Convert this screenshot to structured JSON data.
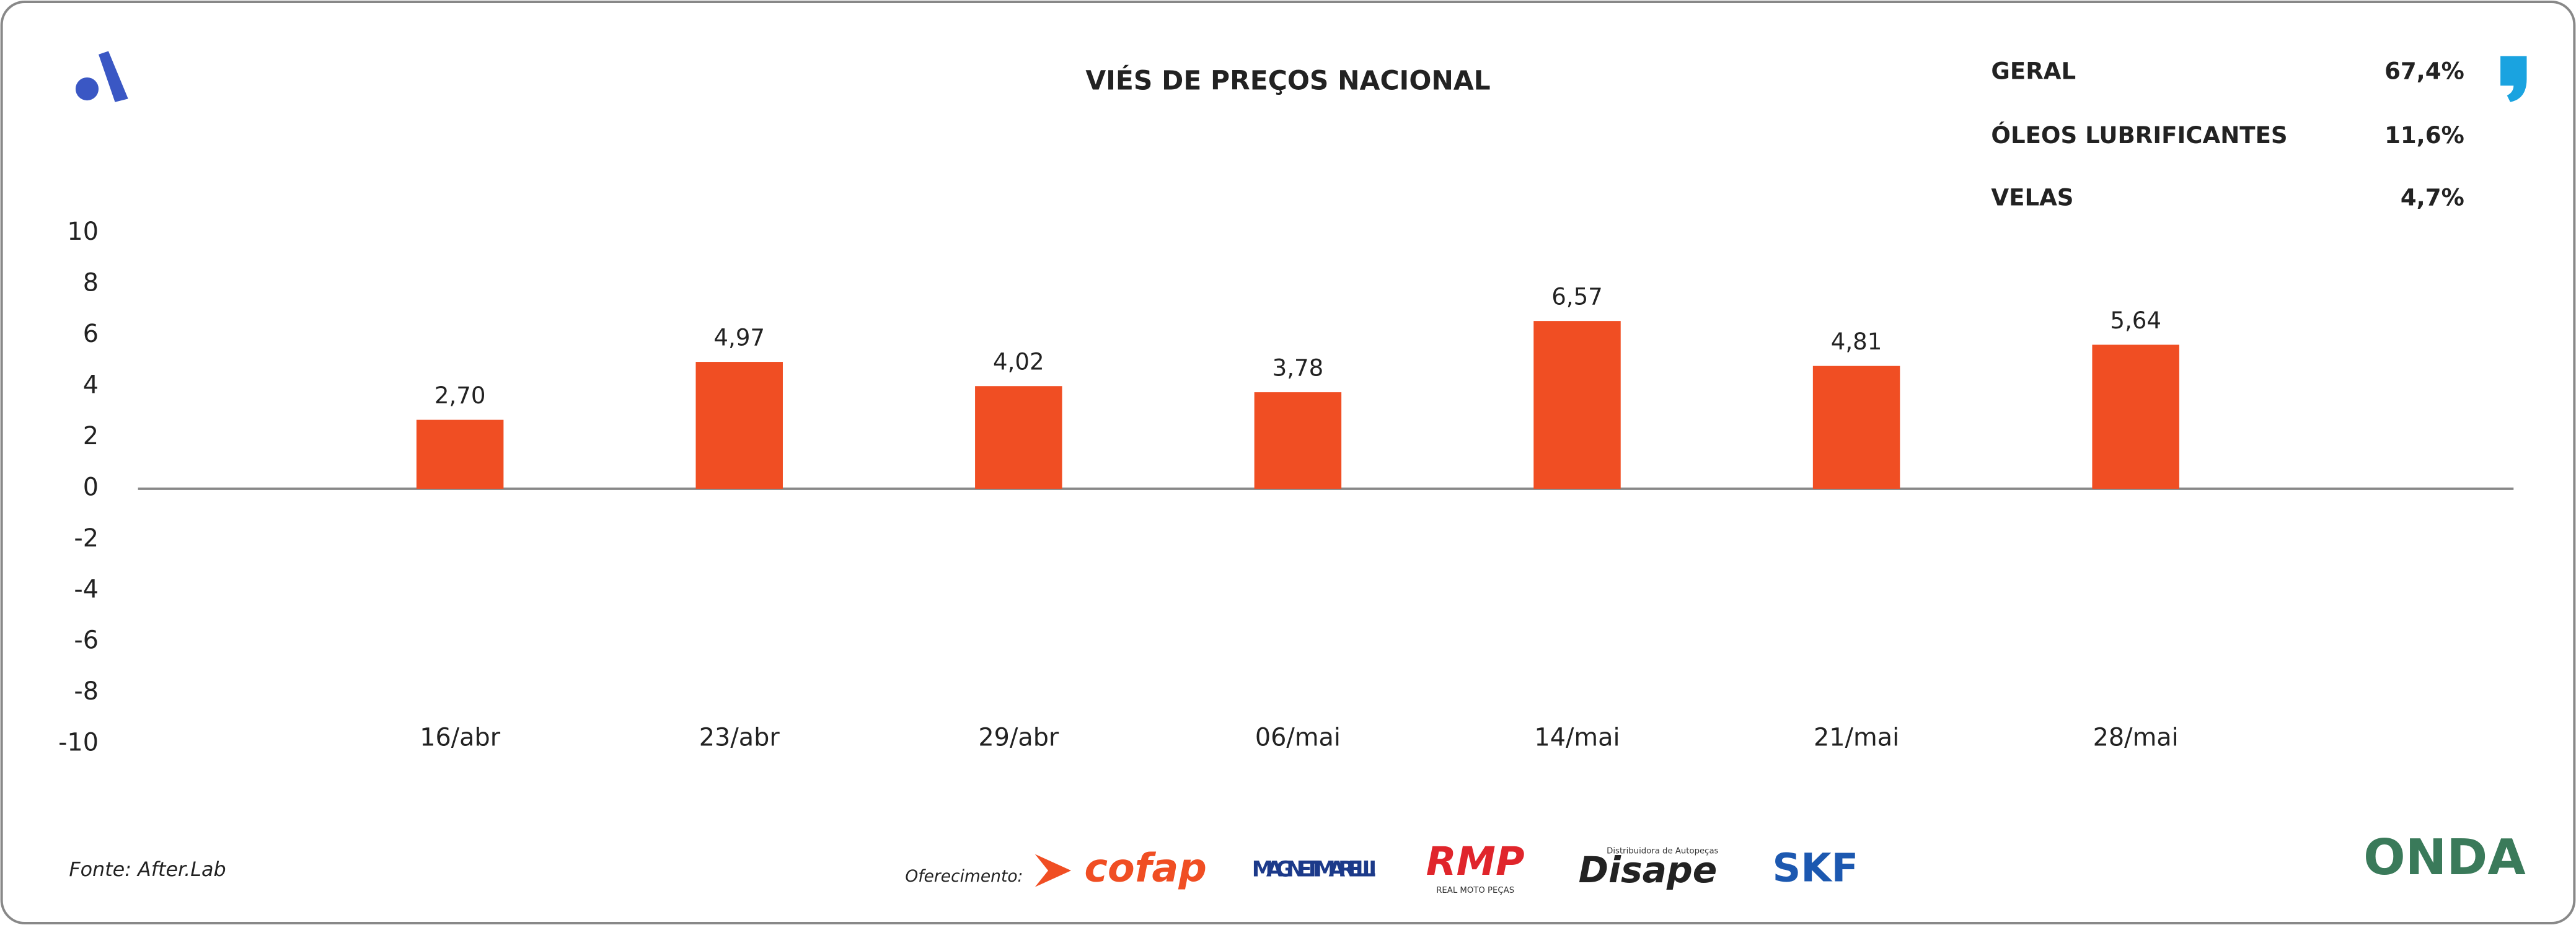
{
  "chart_data": {
    "type": "bar",
    "title": "VIÉS DE PREÇOS NACIONAL",
    "categories": [
      "16/abr",
      "23/abr",
      "29/abr",
      "06/mai",
      "14/mai",
      "21/mai",
      "28/mai"
    ],
    "values": [
      2.7,
      4.97,
      4.02,
      3.78,
      6.57,
      4.81,
      5.64
    ],
    "value_labels": [
      "2,70",
      "4,97",
      "4,02",
      "3,78",
      "6,57",
      "4,81",
      "5,64"
    ],
    "color": "#f04e23",
    "ylim": [
      -10,
      10
    ],
    "yticks": [
      -10,
      -8,
      -6,
      -4,
      -2,
      0,
      2,
      4,
      6,
      8,
      10
    ],
    "grid": false
  },
  "summary": [
    {
      "label": "GERAL",
      "value": "67,4%"
    },
    {
      "label": "ÓLEOS LUBRIFICANTES",
      "value": "11,6%"
    },
    {
      "label": "VELAS",
      "value": "4,7%"
    }
  ],
  "footer": {
    "source": "Fonte: After.Lab",
    "sponsor_label": "Oferecimento:",
    "sponsors": [
      "cofap",
      "MAGNETI MARELLI",
      "RMP",
      "REAL MOTO PEÇAS",
      "Distribuidora de Autopeças",
      "Disape",
      "SKF"
    ],
    "brand": "ONDA"
  }
}
